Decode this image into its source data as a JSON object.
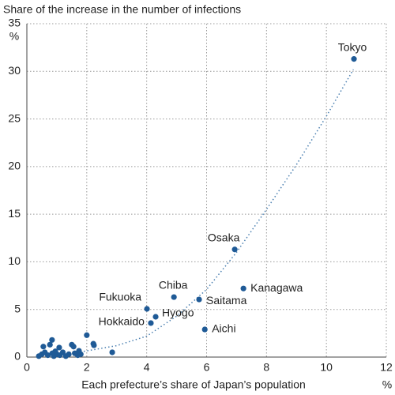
{
  "chart_data": {
    "type": "scatter",
    "title": "Share of the increase in the number of infections",
    "x_label": "Each prefecture’s share of Japan’s population",
    "x_unit": "%",
    "y_unit": "%",
    "xlim": [
      0,
      12
    ],
    "xticks": [
      0,
      2,
      4,
      6,
      8,
      10,
      12
    ],
    "ylim": [
      0,
      35
    ],
    "yticks": [
      0,
      5,
      10,
      15,
      20,
      25,
      30,
      35
    ],
    "grid": true,
    "series": [
      {
        "color": "#1f5a96",
        "labels": [
          "Tokyo",
          "Osaka",
          "Kanagawa",
          "Saitama",
          "Chiba",
          "Fukuoka",
          "Hyogo",
          "Hokkaido",
          "Aichi",
          null,
          null,
          null,
          null,
          null,
          null,
          null,
          null,
          null,
          null,
          null,
          null,
          null,
          null,
          null,
          null,
          null,
          null,
          null,
          null,
          null,
          null,
          null,
          null,
          null,
          null
        ],
        "x": [
          10.92,
          6.94,
          7.23,
          5.75,
          4.91,
          4.01,
          4.3,
          4.14,
          5.94,
          0.4,
          0.5,
          0.55,
          0.6,
          0.7,
          0.77,
          0.84,
          0.85,
          0.9,
          0.95,
          1.0,
          1.08,
          1.1,
          1.2,
          1.3,
          1.4,
          1.5,
          1.56,
          1.6,
          1.7,
          1.74,
          1.8,
          2.0,
          2.22,
          2.24,
          2.85
        ],
        "values": [
          31.3,
          11.3,
          7.2,
          6.05,
          6.3,
          5.06,
          4.23,
          3.57,
          2.9,
          0.1,
          0.3,
          1.1,
          0.5,
          0.2,
          1.3,
          1.8,
          0.4,
          0.1,
          0.6,
          0.3,
          1.0,
          0.2,
          0.5,
          0.1,
          0.3,
          1.3,
          1.1,
          0.4,
          0.2,
          0.66,
          0.3,
          2.3,
          1.4,
          1.24,
          0.5
        ]
      }
    ],
    "trendline": {
      "color": "#4a7fb0",
      "x": [
        1.9,
        3,
        4,
        5,
        6,
        7,
        8,
        9,
        10,
        10.9
      ],
      "values": [
        0.6,
        1.2,
        2.2,
        4.3,
        7.1,
        11,
        15.5,
        20.2,
        25.3,
        30.2
      ]
    }
  }
}
